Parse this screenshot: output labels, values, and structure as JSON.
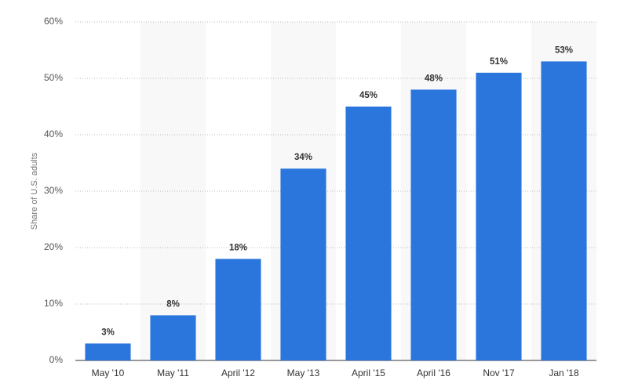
{
  "chart_data": {
    "type": "bar",
    "y_axis_label": "Share of U.S. adults",
    "categories": [
      "May '10",
      "May '11",
      "April '12",
      "May '13",
      "April '15",
      "April '16",
      "Nov '17",
      "Jan '18"
    ],
    "values": [
      3,
      8,
      18,
      34,
      45,
      48,
      51,
      53
    ],
    "value_labels": [
      "3%",
      "8%",
      "18%",
      "34%",
      "45%",
      "48%",
      "51%",
      "53%"
    ],
    "color": "#2a76dd",
    "ylim": [
      0,
      60
    ],
    "yticks": [
      {
        "value": 0,
        "label": "0%"
      },
      {
        "value": 10,
        "label": "10%"
      },
      {
        "value": 20,
        "label": "20%"
      },
      {
        "value": 30,
        "label": "30%"
      },
      {
        "value": 40,
        "label": "40%"
      },
      {
        "value": 50,
        "label": "50%"
      },
      {
        "value": 60,
        "label": "60%"
      }
    ],
    "grid": true
  }
}
